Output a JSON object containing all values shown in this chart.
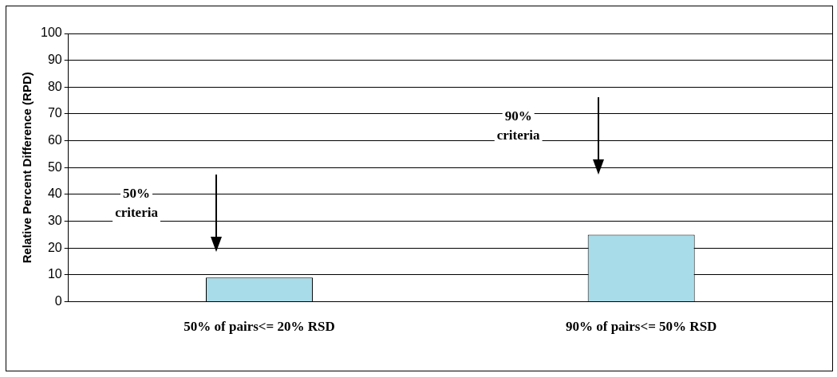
{
  "chart_data": {
    "type": "bar",
    "ylabel": "Relative Percent Difference (RPD)",
    "categories": [
      "50% of pairs<= 20% RSD",
      "90% of pairs<= 50% RSD"
    ],
    "values": [
      9,
      25
    ],
    "color": "#a8dce8",
    "ylim": [
      0,
      100
    ],
    "yticks": [
      0,
      10,
      20,
      30,
      40,
      50,
      60,
      70,
      80,
      90,
      100
    ],
    "grid": "y",
    "legend": false,
    "annotations": [
      "50%\ncriteria",
      "90%\ncriteria"
    ]
  }
}
